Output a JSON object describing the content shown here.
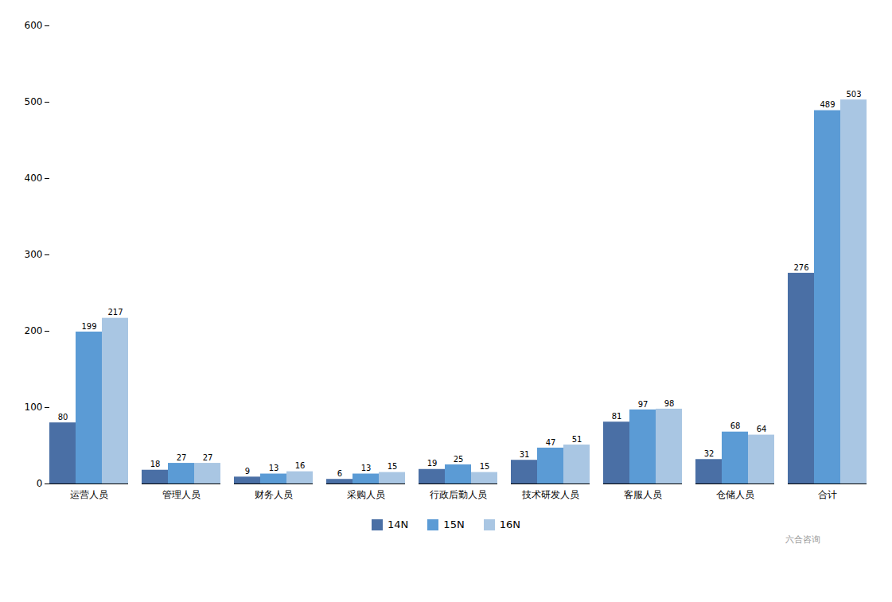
{
  "chart_data": {
    "type": "bar",
    "categories": [
      "运营人员",
      "管理人员",
      "财务人员",
      "采购人员",
      "行政后勤人员",
      "技术研发人员",
      "客服人员",
      "仓储人员",
      "合计"
    ],
    "series": [
      {
        "name": "14N",
        "color": "#4A6FA5",
        "values": [
          80,
          18,
          9,
          6,
          19,
          31,
          81,
          32,
          276
        ]
      },
      {
        "name": "15N",
        "color": "#5B9BD5",
        "values": [
          199,
          27,
          13,
          13,
          25,
          47,
          97,
          68,
          489
        ]
      },
      {
        "name": "16N",
        "color": "#A9C6E3",
        "values": [
          217,
          27,
          16,
          15,
          15,
          51,
          98,
          64,
          503
        ]
      }
    ],
    "ylim": [
      0,
      600
    ],
    "yticks": [
      0,
      100,
      200,
      300,
      400,
      500,
      600
    ],
    "grid": false,
    "legend": "bottom",
    "data_labels": true,
    "annotations": [
      "六合咨询"
    ]
  }
}
